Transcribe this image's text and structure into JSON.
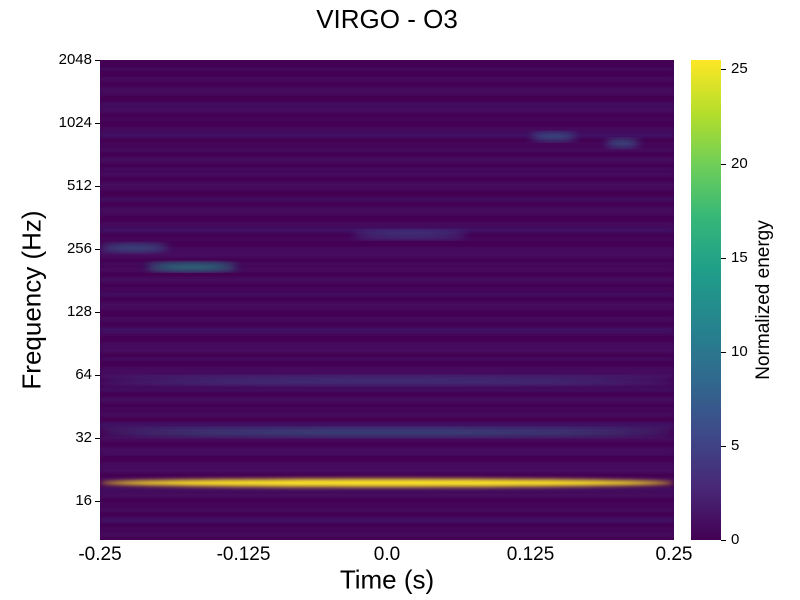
{
  "chart_data": {
    "type": "heatmap",
    "title": "VIRGO - O3",
    "xlabel": "Time (s)",
    "ylabel": "Frequency (Hz)",
    "x_ticks": [
      "-0.25",
      "-0.125",
      "0.0",
      "0.125",
      "0.25"
    ],
    "xlim": [
      -0.25,
      0.25
    ],
    "y_scale": "log2",
    "y_ticks": [
      "16",
      "32",
      "64",
      "128",
      "256",
      "512",
      "1024",
      "2048"
    ],
    "ylim": [
      10.4,
      2048
    ],
    "colorbar": {
      "label": "Normalized energy",
      "ticks": [
        "0",
        "5",
        "10",
        "15",
        "20",
        "25"
      ],
      "range": [
        0,
        25.5
      ],
      "colormap": "viridis"
    },
    "features": [
      {
        "freq_hz": 19.5,
        "time_start": -0.25,
        "time_end": 0.25,
        "energy": 25
      },
      {
        "freq_hz": 34,
        "time_start": -0.25,
        "time_end": 0.25,
        "energy": 9
      },
      {
        "freq_hz": 60,
        "time_start": -0.25,
        "time_end": 0.25,
        "energy": 7
      },
      {
        "freq_hz": 210,
        "time_start": -0.21,
        "time_end": -0.13,
        "energy": 13
      },
      {
        "freq_hz": 260,
        "time_start": -0.25,
        "time_end": -0.19,
        "energy": 9
      },
      {
        "freq_hz": 300,
        "time_start": -0.03,
        "time_end": 0.07,
        "energy": 7
      },
      {
        "freq_hz": 880,
        "time_start": 0.125,
        "time_end": 0.165,
        "energy": 9
      },
      {
        "freq_hz": 820,
        "time_start": 0.19,
        "time_end": 0.22,
        "energy": 9
      }
    ]
  }
}
